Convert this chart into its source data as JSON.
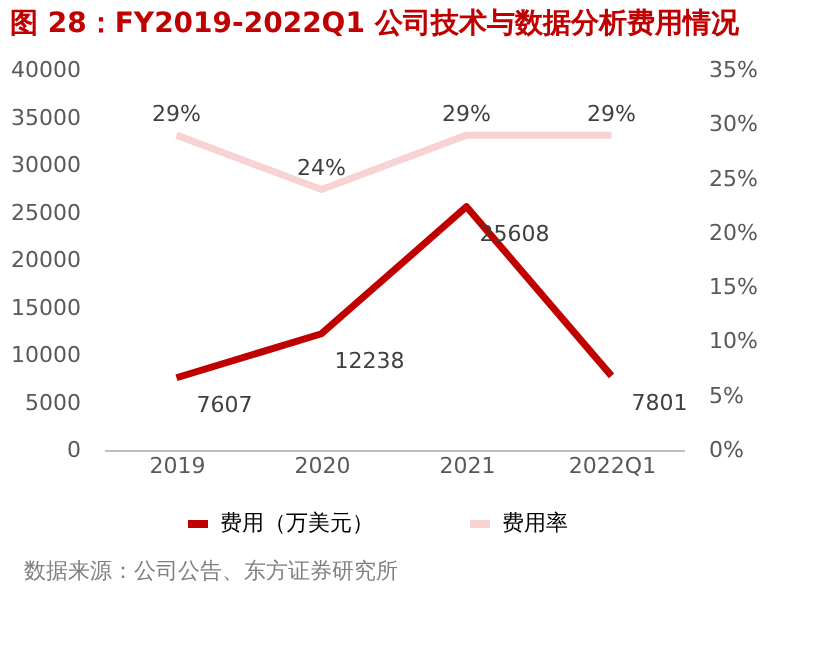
{
  "chart_data": {
    "type": "line",
    "title": "图 28：FY2019-2022Q1 公司技术与数据分析费用情况",
    "categories": [
      "2019",
      "2020",
      "2021",
      "2022Q1"
    ],
    "series": [
      {
        "name": "费用（万美元）",
        "color": "#c00000",
        "values": [
          7607,
          12238,
          25608,
          7801
        ]
      },
      {
        "name": "费用率",
        "color": "#f8d3d3",
        "values": [
          29,
          24,
          29,
          29
        ],
        "axis": "y2",
        "value_labels": [
          "29%",
          "24%",
          "29%",
          "29%"
        ]
      }
    ],
    "ylim": [
      0,
      40000
    ],
    "yticks": [
      0,
      5000,
      10000,
      15000,
      20000,
      25000,
      30000,
      35000,
      40000
    ],
    "y2lim": [
      0,
      35
    ],
    "y2ticks": [
      {
        "value": 0,
        "label": "0%"
      },
      {
        "value": 5,
        "label": "5%"
      },
      {
        "value": 10,
        "label": "10%"
      },
      {
        "value": 15,
        "label": "15%"
      },
      {
        "value": 20,
        "label": "20%"
      },
      {
        "value": 25,
        "label": "25%"
      },
      {
        "value": 30,
        "label": "30%"
      },
      {
        "value": 35,
        "label": "35%"
      }
    ],
    "data_labels": true,
    "legend": "bottom",
    "grid": false,
    "marker": "none",
    "line_style": "solid",
    "annotations": [
      "数据来源：公司公告、东方证券研究所"
    ]
  }
}
